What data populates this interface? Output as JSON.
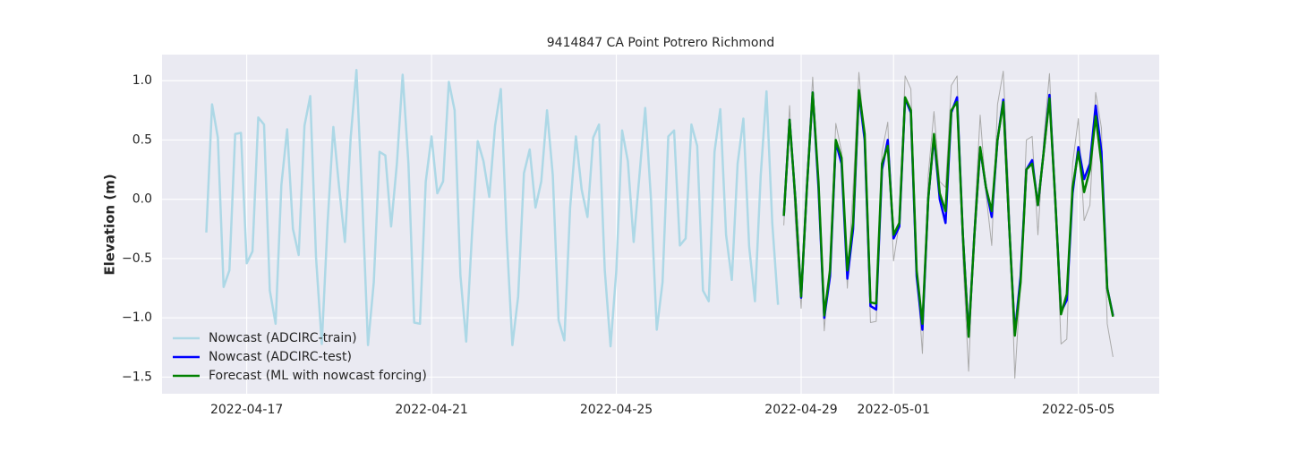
{
  "chart_data": {
    "type": "line",
    "title": "9414847 CA Point Potrero Richmond",
    "y_label": "Elevation (m)",
    "x": [
      "2022-04-16T03:00",
      "2022-04-16T06:00",
      "2022-04-16T09:00",
      "2022-04-16T12:00",
      "2022-04-16T15:00",
      "2022-04-16T18:00",
      "2022-04-16T21:00",
      "2022-04-17T00:00",
      "2022-04-17T03:00",
      "2022-04-17T06:00",
      "2022-04-17T09:00",
      "2022-04-17T12:00",
      "2022-04-17T15:00",
      "2022-04-17T18:00",
      "2022-04-17T21:00",
      "2022-04-18T00:00",
      "2022-04-18T03:00",
      "2022-04-18T06:00",
      "2022-04-18T09:00",
      "2022-04-18T12:00",
      "2022-04-18T15:00",
      "2022-04-18T18:00",
      "2022-04-18T21:00",
      "2022-04-19T00:00",
      "2022-04-19T03:00",
      "2022-04-19T06:00",
      "2022-04-19T09:00",
      "2022-04-19T12:00",
      "2022-04-19T15:00",
      "2022-04-19T18:00",
      "2022-04-19T21:00",
      "2022-04-20T00:00",
      "2022-04-20T03:00",
      "2022-04-20T06:00",
      "2022-04-20T09:00",
      "2022-04-20T12:00",
      "2022-04-20T15:00",
      "2022-04-20T18:00",
      "2022-04-20T21:00",
      "2022-04-21T00:00",
      "2022-04-21T03:00",
      "2022-04-21T06:00",
      "2022-04-21T09:00",
      "2022-04-21T12:00",
      "2022-04-21T15:00",
      "2022-04-21T18:00",
      "2022-04-21T21:00",
      "2022-04-22T00:00",
      "2022-04-22T03:00",
      "2022-04-22T06:00",
      "2022-04-22T09:00",
      "2022-04-22T12:00",
      "2022-04-22T15:00",
      "2022-04-22T18:00",
      "2022-04-22T21:00",
      "2022-04-23T00:00",
      "2022-04-23T03:00",
      "2022-04-23T06:00",
      "2022-04-23T09:00",
      "2022-04-23T12:00",
      "2022-04-23T15:00",
      "2022-04-23T18:00",
      "2022-04-23T21:00",
      "2022-04-24T00:00",
      "2022-04-24T03:00",
      "2022-04-24T06:00",
      "2022-04-24T09:00",
      "2022-04-24T12:00",
      "2022-04-24T15:00",
      "2022-04-24T18:00",
      "2022-04-24T21:00",
      "2022-04-25T00:00",
      "2022-04-25T03:00",
      "2022-04-25T06:00",
      "2022-04-25T09:00",
      "2022-04-25T12:00",
      "2022-04-25T15:00",
      "2022-04-25T18:00",
      "2022-04-25T21:00",
      "2022-04-26T00:00",
      "2022-04-26T03:00",
      "2022-04-26T06:00",
      "2022-04-26T09:00",
      "2022-04-26T12:00",
      "2022-04-26T15:00",
      "2022-04-26T18:00",
      "2022-04-26T21:00",
      "2022-04-27T00:00",
      "2022-04-27T03:00",
      "2022-04-27T06:00",
      "2022-04-27T09:00",
      "2022-04-27T12:00",
      "2022-04-27T15:00",
      "2022-04-27T18:00",
      "2022-04-27T21:00",
      "2022-04-28T00:00",
      "2022-04-28T03:00",
      "2022-04-28T06:00",
      "2022-04-28T09:00",
      "2022-04-28T12:00",
      "2022-04-28T15:00",
      "2022-04-28T18:00",
      "2022-04-28T21:00",
      "2022-04-29T00:00",
      "2022-04-29T03:00",
      "2022-04-29T06:00",
      "2022-04-29T09:00",
      "2022-04-29T12:00",
      "2022-04-29T15:00",
      "2022-04-29T18:00",
      "2022-04-29T21:00",
      "2022-04-30T00:00",
      "2022-04-30T03:00",
      "2022-04-30T06:00",
      "2022-04-30T09:00",
      "2022-04-30T12:00",
      "2022-04-30T15:00",
      "2022-04-30T18:00",
      "2022-04-30T21:00",
      "2022-05-01T00:00",
      "2022-05-01T03:00",
      "2022-05-01T06:00",
      "2022-05-01T09:00",
      "2022-05-01T12:00",
      "2022-05-01T15:00",
      "2022-05-01T18:00",
      "2022-05-01T21:00",
      "2022-05-02T00:00",
      "2022-05-02T03:00",
      "2022-05-02T06:00",
      "2022-05-02T09:00",
      "2022-05-02T12:00",
      "2022-05-02T15:00",
      "2022-05-02T18:00",
      "2022-05-02T21:00",
      "2022-05-03T00:00",
      "2022-05-03T03:00",
      "2022-05-03T06:00",
      "2022-05-03T09:00",
      "2022-05-03T12:00",
      "2022-05-03T15:00",
      "2022-05-03T18:00",
      "2022-05-03T21:00",
      "2022-05-04T00:00",
      "2022-05-04T03:00",
      "2022-05-04T06:00",
      "2022-05-04T09:00",
      "2022-05-04T12:00",
      "2022-05-04T15:00",
      "2022-05-04T18:00",
      "2022-05-04T21:00",
      "2022-05-05T00:00",
      "2022-05-05T03:00",
      "2022-05-05T06:00",
      "2022-05-05T09:00",
      "2022-05-05T12:00",
      "2022-05-05T15:00",
      "2022-05-05T18:00"
    ],
    "series": [
      {
        "name": "Nowcast (ADCIRC-train)",
        "color": "#add8e6",
        "width": 2.5,
        "values": [
          -0.28,
          0.8,
          0.52,
          -0.74,
          -0.6,
          0.55,
          0.56,
          -0.54,
          -0.44,
          0.69,
          0.63,
          -0.77,
          -1.05,
          0.12,
          0.59,
          -0.25,
          -0.47,
          0.62,
          0.87,
          -0.49,
          -1.22,
          -0.2,
          0.61,
          0.1,
          -0.36,
          0.52,
          1.09,
          0.0,
          -1.23,
          -0.7,
          0.4,
          0.37,
          -0.23,
          0.3,
          1.05,
          0.3,
          -1.04,
          -1.05,
          0.15,
          0.53,
          0.05,
          0.15,
          0.99,
          0.75,
          -0.64,
          -1.2,
          -0.3,
          0.49,
          0.32,
          0.02,
          0.62,
          0.93,
          -0.3,
          -1.23,
          -0.82,
          0.22,
          0.42,
          -0.07,
          0.15,
          0.75,
          0.2,
          -1.02,
          -1.19,
          -0.07,
          0.53,
          0.08,
          -0.15,
          0.52,
          0.63,
          -0.6,
          -1.24,
          -0.6,
          0.58,
          0.32,
          -0.36,
          0.2,
          0.77,
          0.0,
          -1.1,
          -0.7,
          0.53,
          0.58,
          -0.39,
          -0.33,
          0.63,
          0.45,
          -0.77,
          -0.86,
          0.4,
          0.76,
          -0.3,
          -0.68,
          0.3,
          0.68,
          -0.4,
          -0.86,
          0.2,
          0.91,
          -0.2,
          -0.89,
          null,
          null,
          null,
          null,
          null,
          null,
          null,
          null,
          null,
          null,
          null,
          null,
          null,
          null,
          null,
          null,
          null,
          null,
          null,
          null,
          null,
          null,
          null,
          null,
          null,
          null,
          null,
          null,
          null,
          null,
          null,
          null,
          null,
          null,
          null,
          null,
          null,
          null,
          null,
          null,
          null,
          null,
          null,
          null,
          null,
          null,
          null,
          null,
          null,
          null,
          null,
          null,
          null,
          null,
          null,
          null,
          null,
          null
        ]
      },
      {
        "color": "#aaaaaa",
        "width": 1,
        "values": [
          null,
          null,
          null,
          null,
          null,
          null,
          null,
          null,
          null,
          null,
          null,
          null,
          null,
          null,
          null,
          null,
          null,
          null,
          null,
          null,
          null,
          null,
          null,
          null,
          null,
          null,
          null,
          null,
          null,
          null,
          null,
          null,
          null,
          null,
          null,
          null,
          null,
          null,
          null,
          null,
          null,
          null,
          null,
          null,
          null,
          null,
          null,
          null,
          null,
          null,
          null,
          null,
          null,
          null,
          null,
          null,
          null,
          null,
          null,
          null,
          null,
          null,
          null,
          null,
          null,
          null,
          null,
          null,
          null,
          null,
          null,
          null,
          null,
          null,
          null,
          null,
          null,
          null,
          null,
          null,
          null,
          null,
          null,
          null,
          null,
          null,
          null,
          null,
          null,
          null,
          null,
          null,
          null,
          null,
          null,
          null,
          null,
          null,
          null,
          null,
          -0.22,
          0.79,
          -0.2,
          -0.92,
          0.2,
          1.03,
          0.1,
          -1.11,
          -0.5,
          0.64,
          0.4,
          -0.75,
          0.1,
          1.07,
          0.5,
          -1.04,
          -1.03,
          0.4,
          0.65,
          -0.52,
          -0.2,
          1.04,
          0.93,
          -0.6,
          -1.3,
          0.2,
          0.74,
          0.15,
          0.1,
          0.96,
          1.04,
          -0.5,
          -1.45,
          -0.2,
          0.71,
          0.05,
          -0.39,
          0.8,
          1.08,
          0.0,
          -1.51,
          -0.7,
          0.5,
          0.53,
          -0.3,
          0.5,
          1.06,
          0.0,
          -1.22,
          -1.18,
          0.3,
          0.68,
          -0.18,
          -0.05,
          0.9,
          0.6,
          -1.05,
          -1.33
        ]
      },
      {
        "name": "Nowcast (ADCIRC-test)",
        "color": "#0000ff",
        "width": 2.5,
        "values": [
          null,
          null,
          null,
          null,
          null,
          null,
          null,
          null,
          null,
          null,
          null,
          null,
          null,
          null,
          null,
          null,
          null,
          null,
          null,
          null,
          null,
          null,
          null,
          null,
          null,
          null,
          null,
          null,
          null,
          null,
          null,
          null,
          null,
          null,
          null,
          null,
          null,
          null,
          null,
          null,
          null,
          null,
          null,
          null,
          null,
          null,
          null,
          null,
          null,
          null,
          null,
          null,
          null,
          null,
          null,
          null,
          null,
          null,
          null,
          null,
          null,
          null,
          null,
          null,
          null,
          null,
          null,
          null,
          null,
          null,
          null,
          null,
          null,
          null,
          null,
          null,
          null,
          null,
          null,
          null,
          null,
          null,
          null,
          null,
          null,
          null,
          null,
          null,
          null,
          null,
          null,
          null,
          null,
          null,
          null,
          null,
          null,
          null,
          null,
          null,
          -0.14,
          0.67,
          0.0,
          -0.83,
          0.1,
          0.9,
          0.1,
          -1.0,
          -0.65,
          0.48,
          0.3,
          -0.67,
          -0.25,
          0.9,
          0.5,
          -0.9,
          -0.93,
          0.25,
          0.5,
          -0.33,
          -0.23,
          0.85,
          0.73,
          -0.65,
          -1.1,
          0.0,
          0.53,
          0.0,
          -0.2,
          0.73,
          0.86,
          -0.3,
          -1.15,
          -0.3,
          0.43,
          0.1,
          -0.15,
          0.5,
          0.84,
          -0.2,
          -1.13,
          -0.65,
          0.25,
          0.33,
          -0.05,
          0.4,
          0.88,
          0.0,
          -0.95,
          -0.85,
          0.05,
          0.44,
          0.17,
          0.3,
          0.79,
          0.4,
          -0.75,
          -0.98
        ]
      },
      {
        "name": "Forecast (ML with nowcast forcing)",
        "color": "#008000",
        "width": 2.5,
        "values": [
          null,
          null,
          null,
          null,
          null,
          null,
          null,
          null,
          null,
          null,
          null,
          null,
          null,
          null,
          null,
          null,
          null,
          null,
          null,
          null,
          null,
          null,
          null,
          null,
          null,
          null,
          null,
          null,
          null,
          null,
          null,
          null,
          null,
          null,
          null,
          null,
          null,
          null,
          null,
          null,
          null,
          null,
          null,
          null,
          null,
          null,
          null,
          null,
          null,
          null,
          null,
          null,
          null,
          null,
          null,
          null,
          null,
          null,
          null,
          null,
          null,
          null,
          null,
          null,
          null,
          null,
          null,
          null,
          null,
          null,
          null,
          null,
          null,
          null,
          null,
          null,
          null,
          null,
          null,
          null,
          null,
          null,
          null,
          null,
          null,
          null,
          null,
          null,
          null,
          null,
          null,
          null,
          null,
          null,
          null,
          null,
          null,
          null,
          null,
          null,
          -0.14,
          0.67,
          0.0,
          -0.82,
          0.1,
          0.9,
          0.15,
          -0.98,
          -0.6,
          0.5,
          0.35,
          -0.6,
          -0.2,
          0.92,
          0.55,
          -0.87,
          -0.88,
          0.3,
          0.45,
          -0.3,
          -0.2,
          0.86,
          0.75,
          -0.6,
          -1.05,
          0.0,
          0.55,
          0.05,
          -0.1,
          0.75,
          0.82,
          -0.3,
          -1.16,
          -0.3,
          0.44,
          0.1,
          -0.1,
          0.5,
          0.82,
          -0.2,
          -1.15,
          -0.7,
          0.25,
          0.3,
          -0.05,
          0.4,
          0.85,
          0.0,
          -0.97,
          -0.8,
          0.1,
          0.4,
          0.06,
          0.25,
          0.7,
          0.3,
          -0.75,
          -0.99
        ]
      }
    ],
    "xlim": [
      "2022-04-15T04:00",
      "2022-05-06T18:00"
    ],
    "xticks": [
      "2022-04-17",
      "2022-04-21",
      "2022-04-25",
      "2022-04-29",
      "2022-05-01",
      "2022-05-05"
    ],
    "ylim": [
      -1.64,
      1.22
    ],
    "yticks": [
      {
        "value": -1.5,
        "label": "−1.5"
      },
      {
        "value": -1,
        "label": "−1.0"
      },
      {
        "value": -0.5,
        "label": "−0.5"
      },
      {
        "value": 0,
        "label": "0.0"
      },
      {
        "value": 0.5,
        "label": "0.5"
      },
      {
        "value": 1,
        "label": "1.0"
      }
    ],
    "grid": true,
    "background": "#eaeaf2",
    "legend": "lower left"
  }
}
